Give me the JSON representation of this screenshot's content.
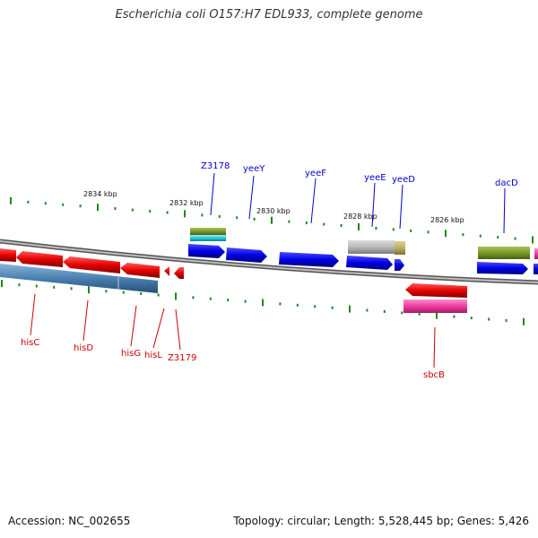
{
  "title": "Escherichia coli O157:H7 EDL933, complete genome",
  "footer": {
    "accession": "Accession: NC_002655",
    "summary": "Topology: circular; Length: 5,528,445 bp; Genes: 5,426"
  },
  "scale_labels": [
    "2834 kbp",
    "2832 kbp",
    "2830 kbp",
    "2828 kbp",
    "2826 kbp"
  ],
  "gene_labels_top": [
    "Z3178",
    "yeeY",
    "yeeF",
    "yeeE",
    "yeeD",
    "dacD"
  ],
  "gene_labels_bottom": [
    "hisC",
    "hisD",
    "hisG",
    "hisL",
    "Z3179",
    "sbcB"
  ],
  "colors": {
    "forward_gene": "#0000e6",
    "reverse_gene": "#e60000",
    "top_label": "#0000cc",
    "bottom_label": "#cc0000",
    "ticks": "#1a8a1a",
    "backbone": "#7a7a7a",
    "cds_olive": "#7a9a2a",
    "cds_grey": "#b8b8b8",
    "cds_cyan": "#22c8d8",
    "cds_steel": "#4a7fb0",
    "cds_pink": "#ee3ea0"
  }
}
